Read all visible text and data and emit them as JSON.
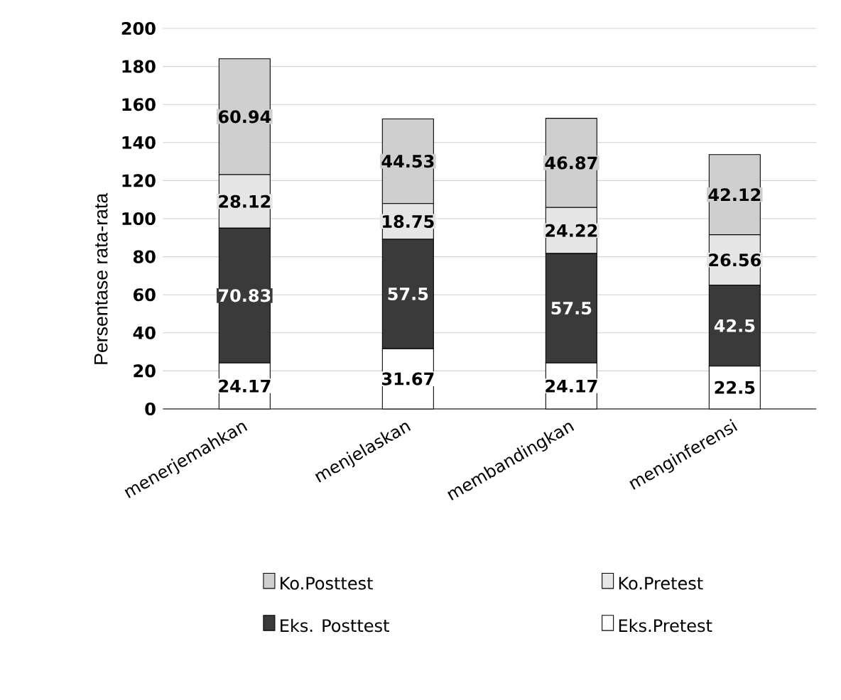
{
  "chart_data": {
    "type": "bar",
    "stacked": true,
    "ylabel": "Persentase rata-rata",
    "categories": [
      "menerjemahkan",
      "menjelaskan",
      "membandingkan",
      "menginferensi"
    ],
    "series": [
      {
        "name": "Eks.Pretest",
        "color": "#ffffff",
        "values": [
          24.17,
          31.67,
          24.17,
          22.5
        ]
      },
      {
        "name": "Eks. Posttest",
        "color": "#3a3a3a",
        "values": [
          70.83,
          57.5,
          57.5,
          42.5
        ]
      },
      {
        "name": "Ko.Pretest",
        "color": "#e6e6e6",
        "values": [
          28.12,
          18.75,
          24.22,
          26.56
        ]
      },
      {
        "name": "Ko.Posttest",
        "color": "#cfcfcf",
        "values": [
          60.94,
          44.53,
          46.87,
          42.12
        ]
      }
    ],
    "ylim": [
      0,
      200
    ],
    "yticks": [
      0,
      20,
      40,
      60,
      80,
      100,
      120,
      140,
      160,
      180,
      200
    ],
    "data_labels": true,
    "legend": "bottom",
    "grid": "y"
  }
}
